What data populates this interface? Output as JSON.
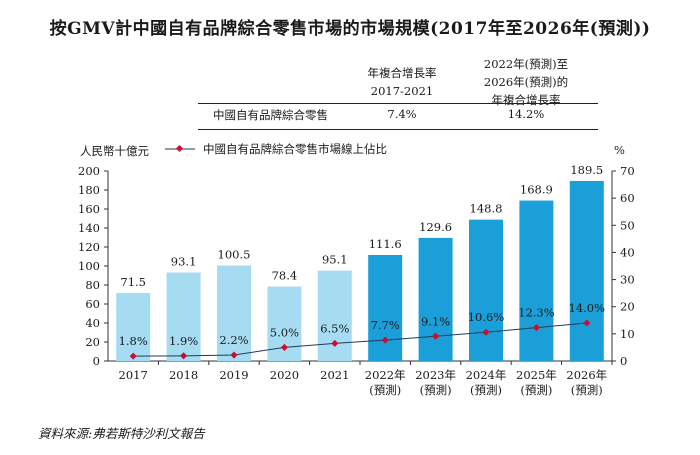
{
  "title": "按GMV計中國自有品牌綜合零售市場的市場規模(2017年至2026年(預測))",
  "cagr_table": {
    "header_1": [
      "年複合增長率",
      "2017-2021"
    ],
    "header_2": [
      "2022年(預測)至",
      "2026年(預測)的",
      "年複合增長率"
    ],
    "row_label": "中國自有品牌綜合零售",
    "value_1": "7.4%",
    "value_2": "14.2%"
  },
  "legend": {
    "line_label": "中國自有品牌綜合零售市場線上佔比"
  },
  "source": "資料來源:弗若斯特沙利文報告",
  "colors": {
    "actual_bar": "#a6dcf2",
    "forecast_bar": "#1a9fd9",
    "line": "#1f3a5f",
    "marker": "#c8102e"
  },
  "chart_data": {
    "type": "bar",
    "y_unit": "人民幣十億元",
    "y2_unit": "%",
    "categories": [
      [
        "2017"
      ],
      [
        "2018"
      ],
      [
        "2019"
      ],
      [
        "2020"
      ],
      [
        "2021"
      ],
      [
        "2022年",
        "(預測)"
      ],
      [
        "2023年",
        "(預測)"
      ],
      [
        "2024年",
        "(預測)"
      ],
      [
        "2025年",
        "(預測)"
      ],
      [
        "2026年",
        "(預測)"
      ]
    ],
    "values": [
      71.5,
      93.1,
      100.5,
      78.4,
      95.1,
      111.6,
      129.6,
      148.8,
      168.9,
      189.5
    ],
    "value_labels": [
      "71.5",
      "93.1",
      "100.5",
      "78.4",
      "95.1",
      "111.6",
      "129.6",
      "148.8",
      "168.9",
      "189.5"
    ],
    "forecast": [
      false,
      false,
      false,
      false,
      false,
      true,
      true,
      true,
      true,
      true
    ],
    "line_series": {
      "name": "中國自有品牌綜合零售市場線上佔比",
      "values": [
        1.8,
        1.9,
        2.2,
        5.0,
        6.5,
        7.7,
        9.1,
        10.6,
        12.3,
        14.0
      ],
      "labels": [
        "1.8%",
        "1.9%",
        "2.2%",
        "5.0%",
        "6.5%",
        "7.7%",
        "9.1%",
        "10.6%",
        "12.3%",
        "14.0%"
      ]
    },
    "ylim": [
      0,
      200
    ],
    "yticks": [
      "0",
      "20",
      "40",
      "60",
      "80",
      "100",
      "120",
      "140",
      "160",
      "180",
      "200"
    ],
    "y2lim": [
      0,
      70
    ],
    "y2ticks": [
      "0",
      "10",
      "20",
      "30",
      "40",
      "50",
      "60",
      "70"
    ]
  }
}
